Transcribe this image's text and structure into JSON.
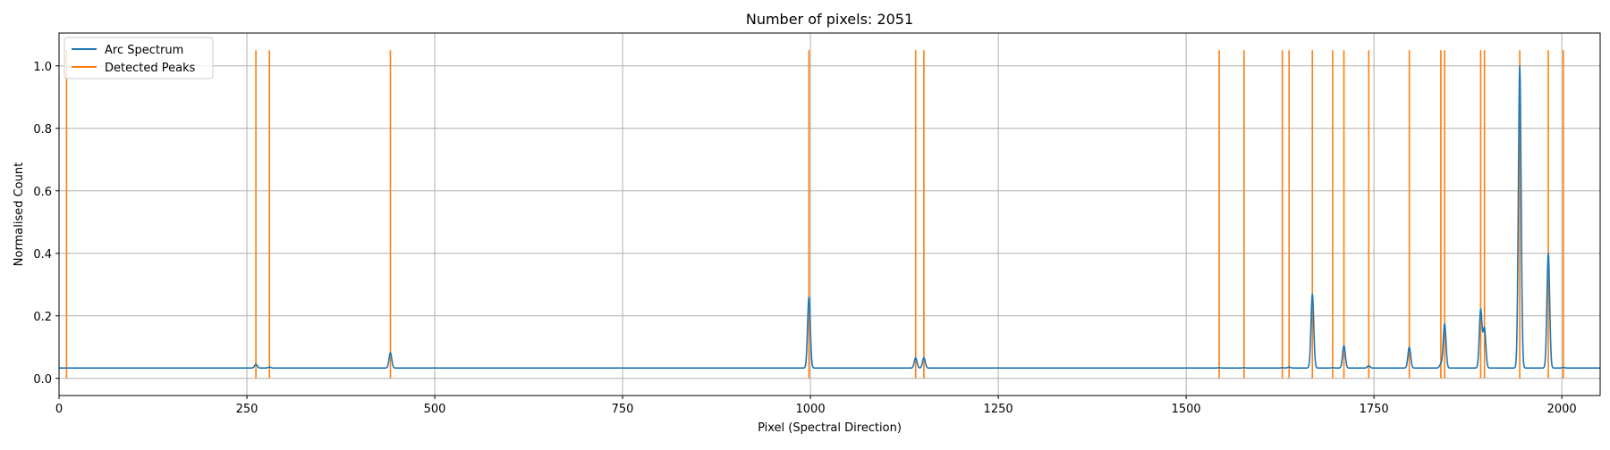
{
  "colors": {
    "spectrum": "#1f77b4",
    "peaks": "#ff7f0e",
    "grid": "#b0b0b0",
    "axis": "#000000"
  },
  "chart_data": {
    "type": "line",
    "title": "Number of pixels: 2051",
    "xlabel": "Pixel (Spectral Direction)",
    "ylabel": "Normalised Count",
    "xlim": [
      0,
      2051
    ],
    "ylim": [
      -0.055,
      1.105
    ],
    "xticks": [
      0,
      250,
      500,
      750,
      1000,
      1250,
      1500,
      1750,
      2000
    ],
    "yticks": [
      0.0,
      0.2,
      0.4,
      0.6,
      0.8,
      1.0
    ],
    "xtick_labels": [
      "0",
      "250",
      "500",
      "750",
      "1000",
      "1250",
      "1500",
      "1750",
      "2000"
    ],
    "ytick_labels": [
      "0.0",
      "0.2",
      "0.4",
      "0.6",
      "0.8",
      "1.0"
    ],
    "grid": true,
    "legend": {
      "position": "top-left",
      "entries": [
        "Arc Spectrum",
        "Detected Peaks"
      ]
    },
    "series": [
      {
        "name": "Arc Spectrum",
        "baseline": 0.033,
        "peaks": [
          {
            "x": 10,
            "y": 0.033
          },
          {
            "x": 262,
            "y": 0.045
          },
          {
            "x": 280,
            "y": 0.036
          },
          {
            "x": 441,
            "y": 0.082
          },
          {
            "x": 998,
            "y": 0.26
          },
          {
            "x": 1140,
            "y": 0.066
          },
          {
            "x": 1151,
            "y": 0.066
          },
          {
            "x": 1544,
            "y": 0.034
          },
          {
            "x": 1577,
            "y": 0.034
          },
          {
            "x": 1628,
            "y": 0.034
          },
          {
            "x": 1637,
            "y": 0.036
          },
          {
            "x": 1668,
            "y": 0.27
          },
          {
            "x": 1695,
            "y": 0.034
          },
          {
            "x": 1710,
            "y": 0.105
          },
          {
            "x": 1743,
            "y": 0.04
          },
          {
            "x": 1797,
            "y": 0.1
          },
          {
            "x": 1839,
            "y": 0.045
          },
          {
            "x": 1844,
            "y": 0.175
          },
          {
            "x": 1892,
            "y": 0.22
          },
          {
            "x": 1897,
            "y": 0.16
          },
          {
            "x": 1944,
            "y": 1.0
          },
          {
            "x": 1982,
            "y": 0.4
          },
          {
            "x": 2002,
            "y": 0.035
          }
        ]
      },
      {
        "name": "Detected Peaks",
        "type": "vlines",
        "ymin": 0.0,
        "ymax": 1.05,
        "x": [
          10,
          262,
          280,
          441,
          998,
          1140,
          1151,
          1544,
          1577,
          1628,
          1637,
          1668,
          1695,
          1710,
          1743,
          1797,
          1839,
          1844,
          1892,
          1897,
          1944,
          1982,
          2002
        ]
      }
    ]
  }
}
